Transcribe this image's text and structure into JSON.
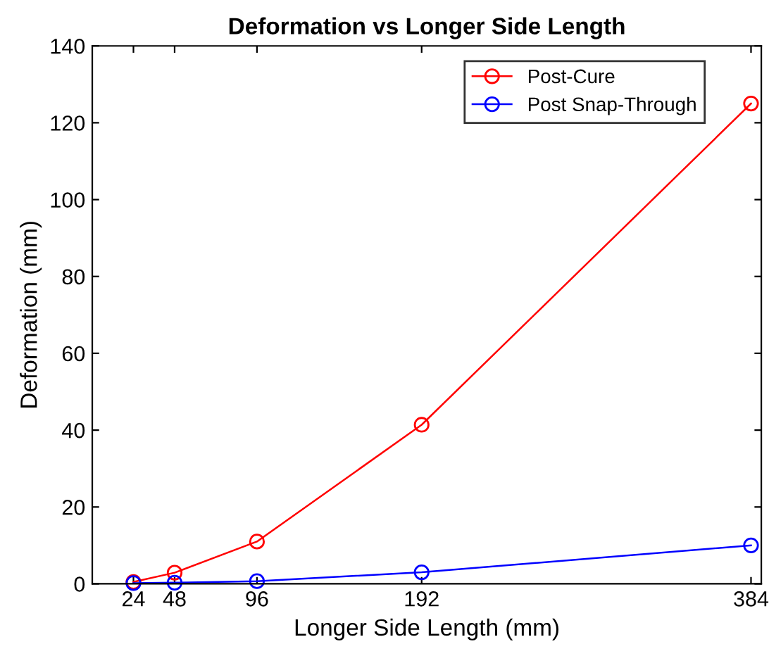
{
  "chart_data": {
    "type": "line",
    "title": "Deformation vs Longer Side Length",
    "xlabel": "Longer Side Length (mm)",
    "ylabel": "Deformation (mm)",
    "x": [
      24,
      48,
      96,
      192,
      384
    ],
    "series": [
      {
        "name": "Post-Cure",
        "color": "#ff0000",
        "values": [
          0.5,
          2.9,
          11,
          41.4,
          125
        ]
      },
      {
        "name": "Post Snap-Through",
        "color": "#0000ff",
        "values": [
          0.2,
          0.3,
          0.7,
          3,
          10
        ]
      }
    ],
    "xlim": [
      0,
      390
    ],
    "xticks": [
      24,
      48,
      96,
      192,
      384
    ],
    "ylim": [
      0,
      140
    ],
    "yticks": [
      0,
      20,
      40,
      60,
      80,
      100,
      120,
      140
    ],
    "grid": false,
    "legend": "top right",
    "marker": "circle",
    "line_style": "solid"
  }
}
